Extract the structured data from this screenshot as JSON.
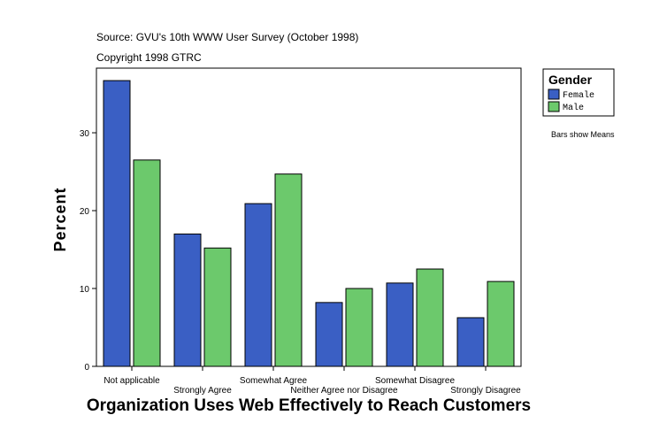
{
  "chart_data": {
    "type": "bar",
    "subtitle": "Source: GVU's 10th WWW User Survey (October 1998)",
    "copyright": "Copyright 1998 GTRC",
    "x_label": "Organization Uses Web Effectively to Reach Customers",
    "y_label": "Percent",
    "legend_title": "Gender",
    "note": "Bars show Means",
    "categories": [
      "Not applicable",
      "Strongly Agree",
      "Somewhat Agree",
      "Neither Agree nor Disagree",
      "Somewhat Disagree",
      "Strongly Disagree"
    ],
    "series": [
      {
        "name": "Female",
        "color": "#3a5fc4",
        "values": [
          36.7,
          17.0,
          20.9,
          8.2,
          10.7,
          6.25
        ]
      },
      {
        "name": "Male",
        "color": "#6cc96c",
        "values": [
          26.5,
          15.2,
          24.7,
          10.0,
          12.5,
          10.9
        ]
      }
    ],
    "ylim": [
      0,
      38.3
    ],
    "yticks": [
      0,
      10,
      20,
      30
    ],
    "grid": false,
    "legend": "right"
  }
}
